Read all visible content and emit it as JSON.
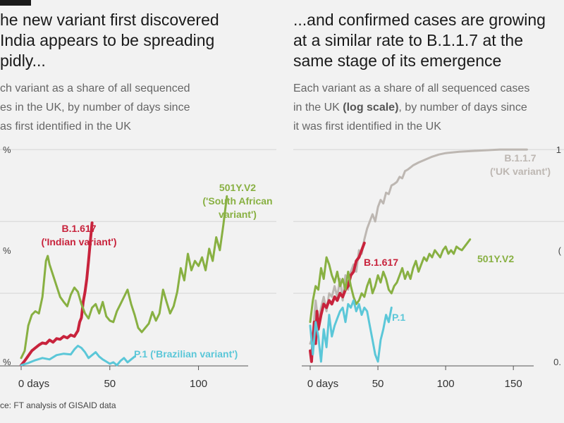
{
  "left_panel": {
    "title_lines": [
      "he new variant first discovered",
      "India appears to be spreading",
      "pidly..."
    ],
    "subtitle_lines": [
      "ch variant as a share of all sequenced",
      "es in the UK, by number of days since",
      "as first identified in the UK"
    ],
    "ytick_labels": [
      "%",
      "%",
      "%"
    ]
  },
  "right_panel": {
    "title_lines": [
      "...and confirmed cases are growing",
      "at a similar rate to B.1.1.7 at the",
      "same stage of its emergence"
    ],
    "subtitle_line1": "Each variant as a share of all sequenced cases",
    "subtitle_line2_pre": "in the UK ",
    "subtitle_line2_bold": "(log scale)",
    "subtitle_line2_post": ", by number of days since",
    "subtitle_line3": "it was first identified in the UK",
    "ytick_labels": [
      "1",
      "(",
      "0."
    ]
  },
  "source_text": "ce: FT analysis of GISAID data",
  "colors": {
    "b1617": "#c8233c",
    "v2": "#88b042",
    "p1": "#5bc7d8",
    "b117": "#bdb7b2",
    "grid": "#d4d4d4",
    "axis": "#555555"
  },
  "chart_data": [
    {
      "type": "line",
      "title": "he new variant first discovered India appears to be spreading pidly...",
      "xlabel": "",
      "ylabel": "",
      "xlim": [
        -5,
        128
      ],
      "ylim": [
        0,
        3.05
      ],
      "xticks": [
        0,
        50,
        100
      ],
      "xtick_labels": [
        "0 days",
        "50",
        "100"
      ],
      "grid": true,
      "legend": "direct labels on lines",
      "series": [
        {
          "name": "B.1.617",
          "label_lines": [
            "B.1.617",
            "('Indian variant')"
          ],
          "color": "#c8233c",
          "x": [
            0,
            2,
            4,
            6,
            8,
            10,
            12,
            14,
            16,
            18,
            20,
            22,
            24,
            26,
            28,
            30,
            32,
            33,
            34,
            35,
            36,
            37,
            38,
            39,
            40
          ],
          "y": [
            0,
            0.06,
            0.13,
            0.2,
            0.24,
            0.28,
            0.31,
            0.3,
            0.35,
            0.32,
            0.37,
            0.36,
            0.4,
            0.38,
            0.42,
            0.4,
            0.48,
            0.6,
            0.66,
            0.88,
            1.02,
            1.2,
            1.45,
            1.72,
            1.98
          ]
        },
        {
          "name": "501Y.V2",
          "label_lines": [
            "501Y.V2",
            "('South African",
            "variant')"
          ],
          "color": "#88b042",
          "x": [
            0,
            2,
            4,
            6,
            8,
            10,
            12,
            14,
            15,
            16,
            18,
            20,
            22,
            24,
            26,
            28,
            30,
            32,
            34,
            36,
            38,
            40,
            42,
            44,
            46,
            48,
            50,
            52,
            54,
            56,
            58,
            60,
            62,
            64,
            66,
            68,
            70,
            72,
            74,
            76,
            78,
            80,
            82,
            84,
            86,
            88,
            90,
            92,
            94,
            96,
            98,
            100,
            102,
            104,
            106,
            108,
            110,
            112,
            114,
            116
          ],
          "y": [
            0.1,
            0.2,
            0.55,
            0.7,
            0.75,
            0.72,
            0.95,
            1.45,
            1.52,
            1.4,
            1.25,
            1.1,
            0.95,
            0.88,
            0.82,
            0.98,
            1.08,
            1.02,
            0.85,
            0.72,
            0.65,
            0.8,
            0.85,
            0.72,
            0.88,
            0.68,
            0.62,
            0.6,
            0.75,
            0.85,
            0.95,
            1.05,
            0.85,
            0.7,
            0.52,
            0.46,
            0.52,
            0.58,
            0.74,
            0.62,
            0.72,
            1.05,
            0.88,
            0.72,
            0.82,
            1.02,
            1.35,
            1.18,
            1.55,
            1.32,
            1.45,
            1.38,
            1.5,
            1.32,
            1.62,
            1.45,
            1.78,
            1.6,
            1.95,
            2.35
          ]
        },
        {
          "name": "P.1",
          "label_lines": [
            "P.1 ('Brazilian variant')"
          ],
          "color": "#5bc7d8",
          "x": [
            0,
            4,
            8,
            12,
            16,
            20,
            24,
            28,
            30,
            32,
            34,
            36,
            38,
            40,
            42,
            44,
            46,
            48,
            50,
            52,
            54,
            56,
            58,
            60,
            62,
            64
          ],
          "y": [
            0.0,
            0.03,
            0.07,
            0.1,
            0.08,
            0.14,
            0.16,
            0.15,
            0.22,
            0.27,
            0.24,
            0.18,
            0.1,
            0.14,
            0.18,
            0.12,
            0.08,
            0.05,
            0.02,
            0.04,
            0.0,
            0.06,
            0.1,
            0.04,
            0.08,
            0.12
          ]
        }
      ]
    },
    {
      "type": "line",
      "title": "...and confirmed cases are growing at a similar rate to B.1.1.7 at the same stage of its emergence",
      "xlabel": "",
      "ylabel": "",
      "xlim": [
        -5,
        165
      ],
      "ylim": [
        0,
        3.05
      ],
      "log_scale": true,
      "xticks": [
        0,
        50,
        100,
        150
      ],
      "xtick_labels": [
        "0 days",
        "50",
        "100",
        "150"
      ],
      "grid": true,
      "legend": "direct labels on lines",
      "series": [
        {
          "name": "B.1.1.7",
          "label_lines": [
            "B.1.1.7",
            "('UK variant')"
          ],
          "color": "#bdb7b2",
          "x": [
            0,
            2,
            4,
            6,
            8,
            10,
            12,
            14,
            16,
            18,
            20,
            22,
            24,
            26,
            28,
            30,
            32,
            34,
            36,
            38,
            40,
            42,
            44,
            46,
            48,
            50,
            52,
            54,
            56,
            58,
            60,
            62,
            64,
            66,
            68,
            70,
            72,
            74,
            76,
            78,
            80,
            85,
            90,
            95,
            100,
            110,
            120,
            130,
            140,
            150,
            160
          ],
          "y": [
            0.3,
            0.4,
            0.9,
            0.6,
            0.8,
            0.95,
            0.75,
            1.0,
            0.95,
            1.1,
            0.95,
            1.2,
            0.9,
            1.25,
            1.05,
            1.3,
            1.4,
            1.3,
            1.6,
            1.55,
            1.75,
            1.9,
            2.0,
            2.1,
            2.0,
            2.2,
            2.3,
            2.25,
            2.4,
            2.38,
            2.5,
            2.52,
            2.55,
            2.62,
            2.6,
            2.7,
            2.72,
            2.75,
            2.78,
            2.8,
            2.82,
            2.86,
            2.9,
            2.93,
            2.95,
            2.97,
            2.98,
            2.99,
            3.0,
            3.0,
            3.0
          ]
        },
        {
          "name": "B.1.617",
          "label_lines": [
            "B.1.617"
          ],
          "color": "#c8233c",
          "x": [
            0,
            1,
            2,
            3,
            4,
            5,
            6,
            8,
            10,
            12,
            14,
            16,
            18,
            20,
            22,
            24,
            26,
            28,
            30,
            32,
            34,
            36,
            38,
            40
          ],
          "y": [
            0.2,
            0.05,
            0.35,
            0.6,
            0.3,
            0.75,
            0.5,
            0.7,
            0.85,
            0.8,
            0.9,
            0.85,
            0.95,
            0.9,
            1.0,
            0.95,
            1.05,
            1.1,
            1.25,
            1.3,
            1.45,
            1.5,
            1.6,
            1.7
          ]
        },
        {
          "name": "501Y.V2",
          "label_lines": [
            "501Y.V2"
          ],
          "color": "#88b042",
          "x": [
            0,
            2,
            4,
            6,
            8,
            10,
            12,
            14,
            16,
            18,
            20,
            22,
            24,
            26,
            28,
            30,
            32,
            34,
            36,
            38,
            40,
            42,
            44,
            46,
            48,
            50,
            52,
            54,
            56,
            58,
            60,
            62,
            64,
            66,
            68,
            70,
            72,
            74,
            76,
            78,
            80,
            82,
            84,
            86,
            88,
            90,
            92,
            94,
            96,
            98,
            100,
            102,
            104,
            106,
            108,
            110,
            112,
            114,
            116,
            118
          ],
          "y": [
            0.6,
            0.9,
            1.1,
            1.05,
            1.35,
            1.2,
            1.5,
            1.4,
            1.25,
            1.15,
            1.3,
            1.1,
            1.2,
            1.05,
            1.3,
            1.1,
            0.95,
            0.85,
            0.9,
            1.0,
            0.95,
            1.1,
            1.2,
            1.0,
            1.1,
            1.25,
            1.15,
            1.3,
            1.2,
            1.05,
            1.0,
            1.1,
            1.15,
            1.25,
            1.35,
            1.2,
            1.3,
            1.2,
            1.35,
            1.45,
            1.3,
            1.4,
            1.5,
            1.45,
            1.55,
            1.5,
            1.6,
            1.55,
            1.5,
            1.6,
            1.65,
            1.55,
            1.6,
            1.55,
            1.65,
            1.62,
            1.6,
            1.65,
            1.7,
            1.75
          ]
        },
        {
          "name": "P.1",
          "label_lines": [
            "P.1"
          ],
          "color": "#5bc7d8",
          "x": [
            0,
            2,
            4,
            6,
            8,
            10,
            12,
            14,
            16,
            18,
            20,
            22,
            24,
            26,
            28,
            30,
            32,
            34,
            36,
            38,
            40,
            42,
            44,
            46,
            48,
            50,
            52,
            54,
            56,
            58,
            60
          ],
          "y": [
            0.55,
            0.15,
            0.6,
            0.4,
            0.05,
            0.5,
            0.25,
            0.7,
            0.4,
            0.55,
            0.65,
            0.75,
            0.8,
            0.6,
            0.85,
            0.8,
            0.9,
            0.75,
            0.85,
            0.7,
            0.8,
            0.75,
            0.55,
            0.35,
            0.15,
            0.05,
            0.35,
            0.5,
            0.7,
            0.6,
            0.8
          ]
        }
      ]
    }
  ]
}
